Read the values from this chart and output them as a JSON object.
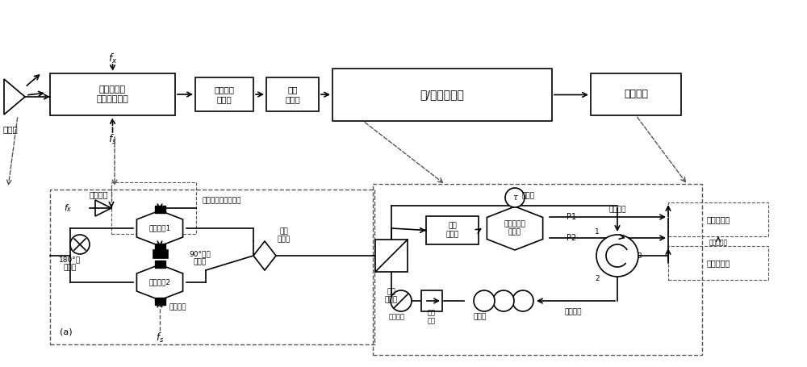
{
  "bg_color": "#ffffff",
  "line_color": "#000000",
  "dashed_color": "#555555",
  "top_row": {
    "laser_label": "激光源",
    "box1_label": "双偏振马赫\n增德尔调制器",
    "box2_label": "掺铒光纤\n放大器",
    "box3_label": "偏振\n控制器",
    "box4_label": "粗/精测频模块",
    "box5_label": "处理模块",
    "fx_label": "$f_x$",
    "fs_label": "$f_s$"
  },
  "bottom_left": {
    "label_a": "(a)",
    "amplifier_label": "电放大器",
    "fx_label": "$f_x$",
    "fs_label": "$f_s$",
    "phase180_label": "180°电\n移相器",
    "sub1_label": "子调制器1",
    "sub2_label": "子调制器2",
    "csssb_label": "载波抑制双边带调制",
    "pbc_label": "偏振\n合束器",
    "pr90_label": "90°偏振\n旋转器",
    "phase_label": "相位调制"
  },
  "bottom_right": {
    "pbs_label": "偏振\n分束器",
    "pc_label": "偏振\n控制器",
    "mzi_label": "马赫曾德尔\n干涉仪",
    "tau_label": "τ",
    "p1_label": "P1",
    "p2_label": "P2",
    "circulator_label": "光环行器",
    "c1_label": "1",
    "c2_label": "2",
    "c3_label": "3",
    "smf_label": "单模光纤",
    "pump_label": "泵浦光",
    "probe_label": "探针光",
    "attenuator_label": "光衰减器",
    "isolator_label": "光隔\n离器",
    "coarse_proc_label": "粗测频处理",
    "fine_proc_label": "精测频处理",
    "coarse_result_label": "粗测频结果"
  }
}
